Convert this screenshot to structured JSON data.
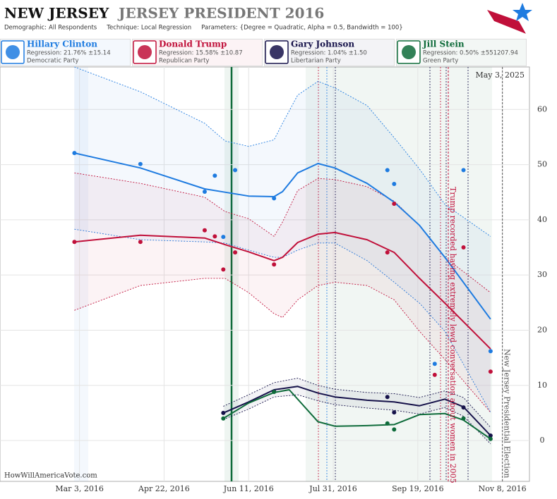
{
  "chart_data": {
    "type": "line",
    "title": "NEW JERSEY",
    "subtitle": "JERSEY PRESIDENT 2016",
    "parameters": [
      {
        "label": "Demographic:",
        "value": "All Respondents"
      },
      {
        "label": "Technique:",
        "value": "Local Regression"
      },
      {
        "label": "Parameters:",
        "value": "{Degree = Quadratic, Alpha = 0.5, Bandwidth = 100}"
      }
    ],
    "date": "May 3, 2025",
    "source": "HowWillAmericaVote.com",
    "xlim": [
      "2016-01-16",
      "2016-11-24"
    ],
    "xticks": [
      {
        "value": "2016-03-03",
        "label": "Mar 3, 2016"
      },
      {
        "value": "2016-04-22",
        "label": "Apr 22, 2016"
      },
      {
        "value": "2016-06-11",
        "label": "Jun 11, 2016"
      },
      {
        "value": "2016-07-31",
        "label": "Jul 31, 2016"
      },
      {
        "value": "2016-09-19",
        "label": "Sep 19, 2016"
      },
      {
        "value": "2016-11-08",
        "label": "Nov 8, 2016"
      }
    ],
    "ylim": [
      -7.4,
      67.7
    ],
    "yticks": [
      0,
      10,
      20,
      30,
      40,
      50,
      60
    ],
    "grid": true,
    "series": [
      {
        "name": "Hillary Clinton",
        "color": "#1e7be0",
        "regression": "Regression: 21.76% ±15.14",
        "party": "Democratic Party",
        "polls": {
          "x": [
            "2016-02-29",
            "2016-04-08",
            "2016-05-16",
            "2016-05-22",
            "2016-05-27",
            "2016-06-03",
            "2016-06-26",
            "2016-09-01",
            "2016-09-05",
            "2016-09-29",
            "2016-10-16",
            "2016-11-01"
          ],
          "values": [
            52.1,
            50.1,
            45.1,
            48.0,
            36.9,
            49.0,
            43.9,
            49.0,
            46.5,
            13.9,
            49.0,
            16.2
          ]
        },
        "trend": {
          "x": [
            "2016-02-29",
            "2016-04-08",
            "2016-05-16",
            "2016-05-28",
            "2016-06-11",
            "2016-06-26",
            "2016-07-01",
            "2016-07-10",
            "2016-07-22",
            "2016-08-01",
            "2016-08-20",
            "2016-09-05",
            "2016-09-20",
            "2016-10-05",
            "2016-11-01"
          ],
          "values": [
            52.1,
            49.4,
            45.6,
            45.0,
            44.3,
            44.2,
            45.1,
            48.5,
            50.2,
            49.4,
            46.6,
            43.2,
            39.0,
            33.2,
            22.0
          ],
          "upper": [
            67.7,
            63.2,
            57.5,
            54.3,
            53.3,
            54.5,
            57.5,
            62.6,
            65.1,
            63.9,
            60.7,
            54.9,
            49.2,
            42.8,
            37.0
          ],
          "lower": [
            38.3,
            36.4,
            36.0,
            35.8,
            34.5,
            33.2,
            33.2,
            34.5,
            35.8,
            35.8,
            32.6,
            28.7,
            24.9,
            19.8,
            5.1
          ]
        }
      },
      {
        "name": "Donald Trump",
        "color": "#c0103a",
        "regression": "Regression: 15.58% ±10.87",
        "party": "Republican Party",
        "polls": {
          "x": [
            "2016-02-29",
            "2016-04-08",
            "2016-05-16",
            "2016-05-22",
            "2016-05-27",
            "2016-06-03",
            "2016-06-26",
            "2016-09-01",
            "2016-09-05",
            "2016-09-29",
            "2016-10-16",
            "2016-11-01"
          ],
          "values": [
            36.0,
            36.0,
            38.1,
            37.0,
            31.0,
            34.1,
            31.9,
            34.1,
            42.9,
            11.9,
            35.0,
            12.5
          ]
        },
        "trend": {
          "x": [
            "2016-02-29",
            "2016-04-08",
            "2016-05-16",
            "2016-05-28",
            "2016-06-11",
            "2016-06-26",
            "2016-07-01",
            "2016-07-10",
            "2016-07-22",
            "2016-08-01",
            "2016-08-20",
            "2016-09-05",
            "2016-09-20",
            "2016-10-05",
            "2016-11-01"
          ],
          "values": [
            36.0,
            37.2,
            36.7,
            35.5,
            34.2,
            32.6,
            33.2,
            35.9,
            37.4,
            37.7,
            36.4,
            34.1,
            29.4,
            24.9,
            16.6
          ],
          "upper": [
            48.5,
            46.6,
            44.1,
            41.5,
            40.2,
            37.0,
            39.6,
            45.3,
            47.5,
            47.3,
            46.0,
            43.4,
            39.0,
            33.2,
            26.8
          ],
          "lower": [
            23.6,
            28.1,
            29.4,
            29.4,
            26.8,
            23.0,
            22.3,
            25.5,
            28.1,
            28.7,
            28.1,
            25.5,
            19.8,
            14.7,
            5.1
          ]
        }
      },
      {
        "name": "Gary Johnson",
        "color": "#16124a",
        "regression": "Regression: 1.04% ±1.50",
        "party": "Libertarian Party",
        "polls": {
          "x": [
            "2016-05-27",
            "2016-06-26",
            "2016-09-01",
            "2016-09-05",
            "2016-10-16",
            "2016-11-01"
          ],
          "values": [
            5.0,
            8.9,
            7.9,
            5.1,
            6.0,
            0.9
          ]
        },
        "trend": {
          "x": [
            "2016-05-27",
            "2016-06-11",
            "2016-06-26",
            "2016-07-10",
            "2016-07-22",
            "2016-08-01",
            "2016-08-20",
            "2016-09-05",
            "2016-09-20",
            "2016-10-05",
            "2016-10-16",
            "2016-11-01"
          ],
          "values": [
            5.0,
            7.0,
            9.2,
            9.8,
            8.6,
            7.9,
            7.3,
            7.0,
            6.3,
            7.5,
            6.1,
            0.9
          ],
          "upper": [
            6.2,
            8.3,
            10.5,
            11.3,
            10.0,
            9.3,
            8.7,
            8.5,
            7.8,
            9.0,
            7.8,
            2.4
          ],
          "lower": [
            3.8,
            5.7,
            7.9,
            8.3,
            7.2,
            6.5,
            5.9,
            5.5,
            4.8,
            6.0,
            4.4,
            -0.6
          ]
        }
      },
      {
        "name": "Jill Stein",
        "color": "#0e6b3a",
        "regression": "Regression: 0.50% ±551207.94",
        "party": "Green Party",
        "polls": {
          "x": [
            "2016-05-27",
            "2016-06-26",
            "2016-09-01",
            "2016-09-05",
            "2016-10-16",
            "2016-11-01"
          ],
          "values": [
            4.0,
            8.8,
            3.1,
            2.0,
            4.0,
            0.3
          ]
        },
        "trend": {
          "x": [
            "2016-05-27",
            "2016-06-11",
            "2016-06-26",
            "2016-07-05",
            "2016-07-22",
            "2016-08-01",
            "2016-08-20",
            "2016-09-05",
            "2016-09-20",
            "2016-10-05",
            "2016-10-16",
            "2016-11-01"
          ],
          "values": [
            4.0,
            6.8,
            8.7,
            9.2,
            3.4,
            2.6,
            2.7,
            2.9,
            4.7,
            4.9,
            3.7,
            0.3
          ]
        }
      }
    ],
    "annotations": [
      {
        "x": "2016-10-07",
        "text": "Trump recorded having extremely lewd conversation about women in 2005",
        "color": "#c0103a"
      },
      {
        "x": "2016-11-08",
        "text": "New Jersey Presidential Election",
        "color": "#555555"
      }
    ]
  }
}
